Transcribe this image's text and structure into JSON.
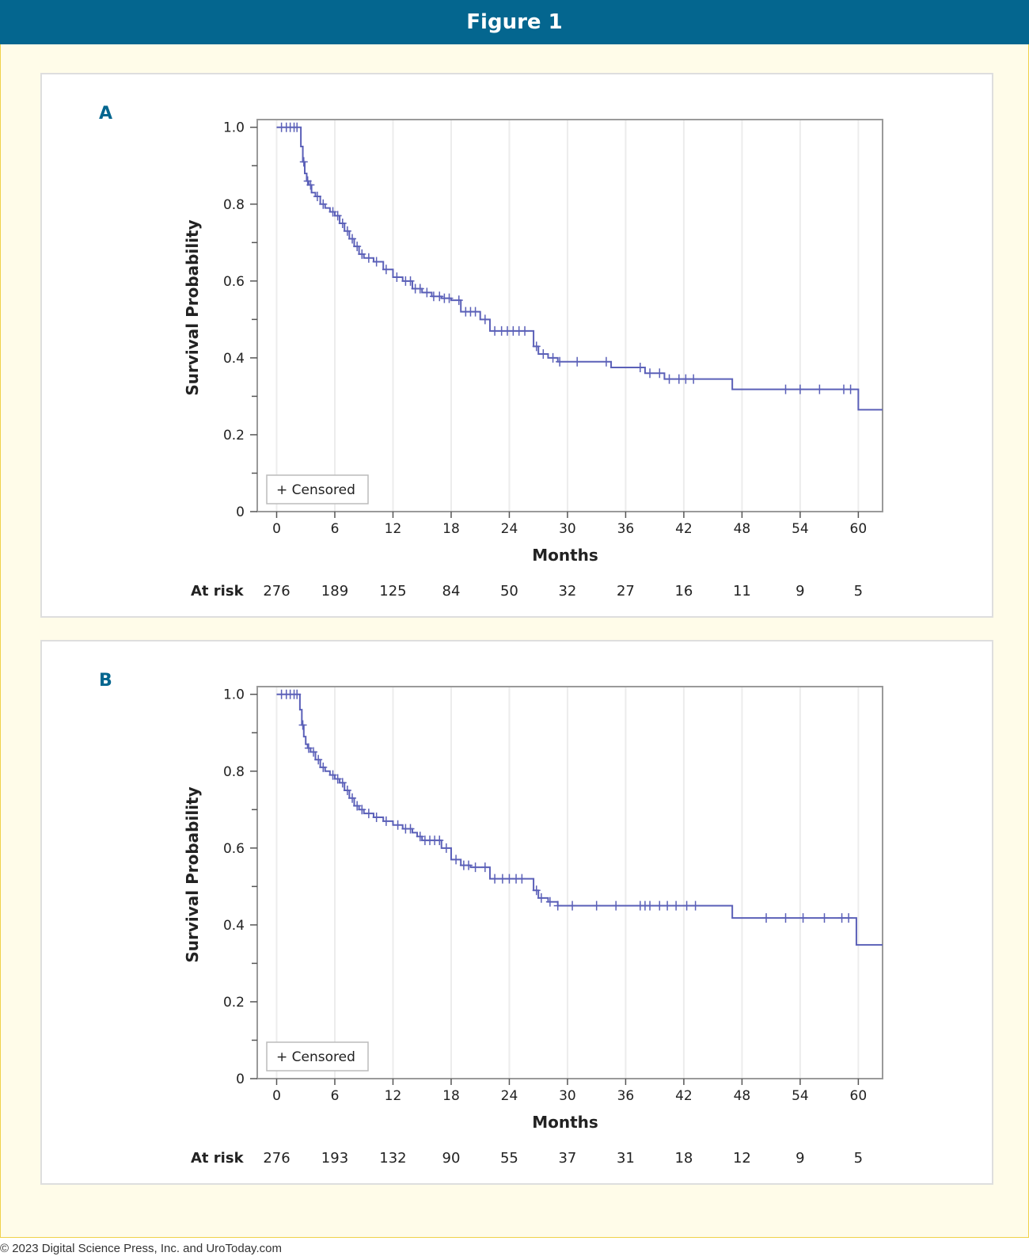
{
  "header": {
    "title": "Figure 1"
  },
  "footer": {
    "copyright": "© 2023 Digital Science Press, Inc. and UroToday.com"
  },
  "colors": {
    "accent": "#04668f",
    "curve": "#5b60b8",
    "frame": "#fffce9"
  },
  "chart_data": [
    {
      "panel_label": "A",
      "type": "line",
      "step": "post",
      "xlabel": "Months",
      "ylabel": "Survival Probability",
      "xticks": [
        "0",
        "6",
        "12",
        "18",
        "24",
        "30",
        "36",
        "42",
        "48",
        "54",
        "60"
      ],
      "yticks": [
        "0",
        "0.2",
        "0.4",
        "0.6",
        "0.8",
        "1.0"
      ],
      "xlim": [
        -2,
        62.5
      ],
      "ylim": [
        0,
        1.02
      ],
      "legend": "+ Censored",
      "legend_position": "bottom-left",
      "at_risk_label": "At risk",
      "at_risk": [
        "276",
        "189",
        "125",
        "84",
        "50",
        "32",
        "27",
        "16",
        "11",
        "9",
        "5"
      ],
      "series": [
        {
          "name": "Survival",
          "x": [
            0,
            2.5,
            2.7,
            2.9,
            3.1,
            3.3,
            3.6,
            4.0,
            4.5,
            5.0,
            5.5,
            6.0,
            6.5,
            7.0,
            7.5,
            8.0,
            8.5,
            9.0,
            10.0,
            11.0,
            12.0,
            13.0,
            14.0,
            15.0,
            16.0,
            17.0,
            18.0,
            19.0,
            21.0,
            22.0,
            26.5,
            27.0,
            28.0,
            29.0,
            34.5,
            38.0,
            40.0,
            47.0,
            60.0,
            62.5
          ],
          "y": [
            1.0,
            0.95,
            0.91,
            0.88,
            0.86,
            0.85,
            0.83,
            0.82,
            0.8,
            0.79,
            0.78,
            0.77,
            0.75,
            0.73,
            0.71,
            0.69,
            0.67,
            0.66,
            0.65,
            0.63,
            0.61,
            0.6,
            0.58,
            0.57,
            0.56,
            0.555,
            0.55,
            0.52,
            0.5,
            0.47,
            0.43,
            0.41,
            0.4,
            0.39,
            0.375,
            0.36,
            0.345,
            0.318,
            0.265,
            0.265
          ],
          "censored": [
            0.5,
            1.0,
            1.4,
            1.8,
            2.1,
            2.8,
            3.2,
            3.5,
            4.2,
            4.8,
            5.8,
            6.3,
            6.8,
            7.3,
            7.8,
            8.3,
            8.8,
            9.5,
            10.3,
            11.3,
            12.4,
            13.3,
            13.8,
            14.3,
            14.8,
            15.5,
            16.2,
            16.8,
            17.3,
            17.8,
            18.8,
            19.5,
            20.0,
            20.5,
            21.5,
            22.5,
            23.2,
            23.8,
            24.4,
            25.0,
            25.6,
            26.8,
            27.5,
            28.5,
            29.2,
            31.0,
            34.0,
            37.5,
            38.5,
            39.5,
            40.5,
            41.5,
            42.2,
            43.0,
            52.5,
            54.0,
            56.0,
            58.5,
            59.2
          ]
        }
      ]
    },
    {
      "panel_label": "B",
      "type": "line",
      "step": "post",
      "xlabel": "Months",
      "ylabel": "Survival Probability",
      "xticks": [
        "0",
        "6",
        "12",
        "18",
        "24",
        "30",
        "36",
        "42",
        "48",
        "54",
        "60"
      ],
      "yticks": [
        "0",
        "0.2",
        "0.4",
        "0.6",
        "0.8",
        "1.0"
      ],
      "xlim": [
        -2,
        62.5
      ],
      "ylim": [
        0,
        1.02
      ],
      "legend": "+ Censored",
      "legend_position": "bottom-left",
      "at_risk_label": "At risk",
      "at_risk": [
        "276",
        "193",
        "132",
        "90",
        "55",
        "37",
        "31",
        "18",
        "12",
        "9",
        "5"
      ],
      "series": [
        {
          "name": "Survival",
          "x": [
            0,
            2.4,
            2.6,
            2.8,
            3.0,
            3.2,
            3.5,
            4.0,
            4.5,
            5.0,
            5.5,
            6.0,
            6.5,
            7.0,
            7.5,
            8.0,
            8.5,
            9.0,
            10.0,
            11.0,
            12.0,
            13.0,
            14.0,
            14.5,
            15.0,
            17.0,
            18.0,
            19.0,
            20.0,
            22.0,
            26.5,
            27.0,
            28.0,
            29.0,
            47.0,
            59.8,
            62.5
          ],
          "y": [
            1.0,
            0.96,
            0.92,
            0.89,
            0.87,
            0.86,
            0.85,
            0.83,
            0.81,
            0.8,
            0.79,
            0.78,
            0.77,
            0.75,
            0.73,
            0.71,
            0.7,
            0.69,
            0.68,
            0.67,
            0.66,
            0.65,
            0.64,
            0.63,
            0.62,
            0.6,
            0.57,
            0.555,
            0.55,
            0.52,
            0.49,
            0.47,
            0.46,
            0.45,
            0.418,
            0.348,
            0.348
          ],
          "censored": [
            0.5,
            1.0,
            1.4,
            1.8,
            2.1,
            2.7,
            3.3,
            3.8,
            4.3,
            4.8,
            5.8,
            6.3,
            6.8,
            7.3,
            7.8,
            8.3,
            8.8,
            9.5,
            10.3,
            11.3,
            12.5,
            13.3,
            13.8,
            14.8,
            15.3,
            15.8,
            16.3,
            16.8,
            17.5,
            18.5,
            19.3,
            19.8,
            20.5,
            21.5,
            22.5,
            23.3,
            24.0,
            24.7,
            25.3,
            26.8,
            27.3,
            28.2,
            29.0,
            30.5,
            33.0,
            35.0,
            37.5,
            38.0,
            38.5,
            39.5,
            40.3,
            41.2,
            42.3,
            43.2,
            50.5,
            52.5,
            54.3,
            56.5,
            58.3,
            59.0
          ]
        }
      ]
    }
  ]
}
